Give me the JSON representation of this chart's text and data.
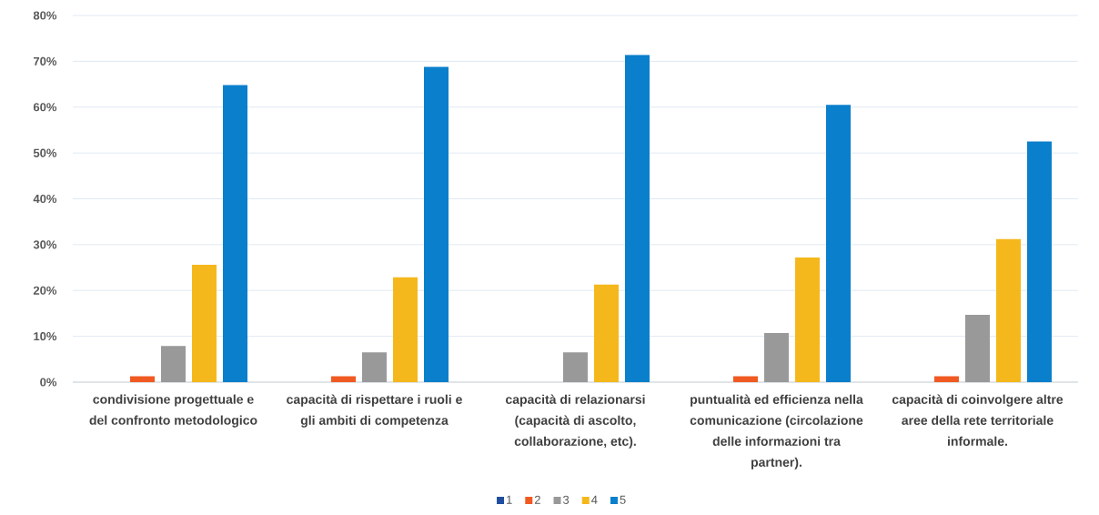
{
  "chart_data": {
    "type": "bar",
    "categories": [
      "condivisione progettuale e del confronto metodologico",
      "capacità di rispettare i ruoli e gli ambiti di competenza",
      "capacità di relazionarsi (capacità di ascolto, collaborazione, etc).",
      "puntualità ed efficienza nella comunicazione (circolazione delle informazioni tra partner).",
      "capacità di coinvolgere altre aree della rete territoriale informale."
    ],
    "series": [
      {
        "name": "1",
        "color": "#1f4e9e",
        "values": [
          0,
          0,
          0,
          0,
          0
        ]
      },
      {
        "name": "2",
        "color": "#f05a22",
        "values": [
          1.3,
          1.3,
          0,
          1.3,
          1.3
        ]
      },
      {
        "name": "3",
        "color": "#999999",
        "values": [
          7.9,
          6.5,
          6.5,
          10.7,
          14.7
        ]
      },
      {
        "name": "4",
        "color": "#f5b81c",
        "values": [
          25.6,
          22.9,
          21.3,
          27.2,
          31.2
        ]
      },
      {
        "name": "5",
        "color": "#0a7fcc",
        "values": [
          64.8,
          68.8,
          71.4,
          60.5,
          52.5
        ]
      }
    ],
    "ylim": [
      0,
      80
    ],
    "yticks": [
      {
        "value": 0,
        "label": "0%"
      },
      {
        "value": 10,
        "label": "10%"
      },
      {
        "value": 20,
        "label": "20%"
      },
      {
        "value": 30,
        "label": "30%"
      },
      {
        "value": 40,
        "label": "40%"
      },
      {
        "value": 50,
        "label": "50%"
      },
      {
        "value": 60,
        "label": "60%"
      },
      {
        "value": 70,
        "label": "70%"
      },
      {
        "value": 80,
        "label": "80%"
      }
    ],
    "grid": "y",
    "legend": "bottom"
  }
}
